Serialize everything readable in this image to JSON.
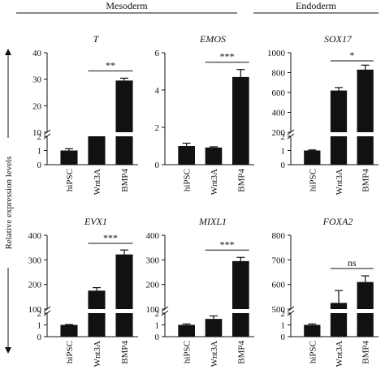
{
  "figure": {
    "groups": [
      {
        "label": "Mesoderm"
      },
      {
        "label": "Endoderm"
      }
    ],
    "ylabel": "Relative expression levels",
    "x_categories": [
      "hiPSC",
      "Wnt3A",
      "BMP4"
    ],
    "colors": {
      "bar": "#111111",
      "axis": "#111111",
      "background": "#ffffff"
    }
  },
  "chart_data": [
    {
      "type": "bar",
      "title": "T",
      "categories": [
        "hiPSC",
        "Wnt3A",
        "BMP4"
      ],
      "values": [
        1.0,
        9.5,
        29.5
      ],
      "errors": [
        0.12,
        0.3,
        0.9
      ],
      "axis_break": true,
      "lower_ticks": [
        "0",
        "1",
        "2"
      ],
      "upper_ticks": [
        "10",
        "20",
        "30",
        "40"
      ],
      "significance": [
        {
          "from": "Wnt3A",
          "to": "BMP4",
          "label": "**"
        }
      ]
    },
    {
      "type": "bar",
      "title": "EMOS",
      "categories": [
        "hiPSC",
        "Wnt3A",
        "BMP4"
      ],
      "values": [
        1.0,
        0.92,
        4.7
      ],
      "errors": [
        0.15,
        0.04,
        0.4
      ],
      "axis_break": false,
      "ylim": [
        0,
        6
      ],
      "ticks": [
        "0",
        "2",
        "4",
        "6"
      ],
      "significance": [
        {
          "from": "Wnt3A",
          "to": "BMP4",
          "label": "***"
        }
      ]
    },
    {
      "type": "bar",
      "title": "SOX17",
      "categories": [
        "hiPSC",
        "Wnt3A",
        "BMP4"
      ],
      "values": [
        1.0,
        620,
        830
      ],
      "errors": [
        0.04,
        30,
        45
      ],
      "axis_break": true,
      "lower_ticks": [
        "0",
        "1",
        "2"
      ],
      "upper_ticks": [
        "200",
        "400",
        "600",
        "800",
        "1000"
      ],
      "significance": [
        {
          "from": "Wnt3A",
          "to": "BMP4",
          "label": "*"
        }
      ]
    },
    {
      "type": "bar",
      "title": "EVX1",
      "categories": [
        "hiPSC",
        "Wnt3A",
        "BMP4"
      ],
      "values": [
        1.0,
        175,
        322
      ],
      "errors": [
        0.03,
        12,
        18
      ],
      "axis_break": true,
      "lower_ticks": [
        "0",
        "1",
        "2"
      ],
      "upper_ticks": [
        "100",
        "200",
        "300",
        "400"
      ],
      "significance": [
        {
          "from": "Wnt3A",
          "to": "BMP4",
          "label": "***"
        }
      ]
    },
    {
      "type": "bar",
      "title": "MIXL1",
      "categories": [
        "hiPSC",
        "Wnt3A",
        "BMP4"
      ],
      "values": [
        1.0,
        60,
        295
      ],
      "errors": [
        0.08,
        12,
        15
      ],
      "axis_break": true,
      "lower_ticks": [
        "0",
        "1",
        "2"
      ],
      "upper_ticks": [
        "100",
        "200",
        "300",
        "400"
      ],
      "significance": [
        {
          "from": "Wnt3A",
          "to": "BMP4",
          "label": "***"
        }
      ]
    },
    {
      "type": "bar",
      "title": "FOXA2",
      "categories": [
        "hiPSC",
        "Wnt3A",
        "BMP4"
      ],
      "values": [
        1.0,
        525,
        610
      ],
      "errors": [
        0.08,
        50,
        25
      ],
      "axis_break": true,
      "lower_ticks": [
        "0",
        "1",
        "2"
      ],
      "upper_ticks": [
        "500",
        "600",
        "700",
        "800"
      ],
      "significance": [
        {
          "from": "Wnt3A",
          "to": "BMP4",
          "label": "ns"
        }
      ]
    }
  ]
}
